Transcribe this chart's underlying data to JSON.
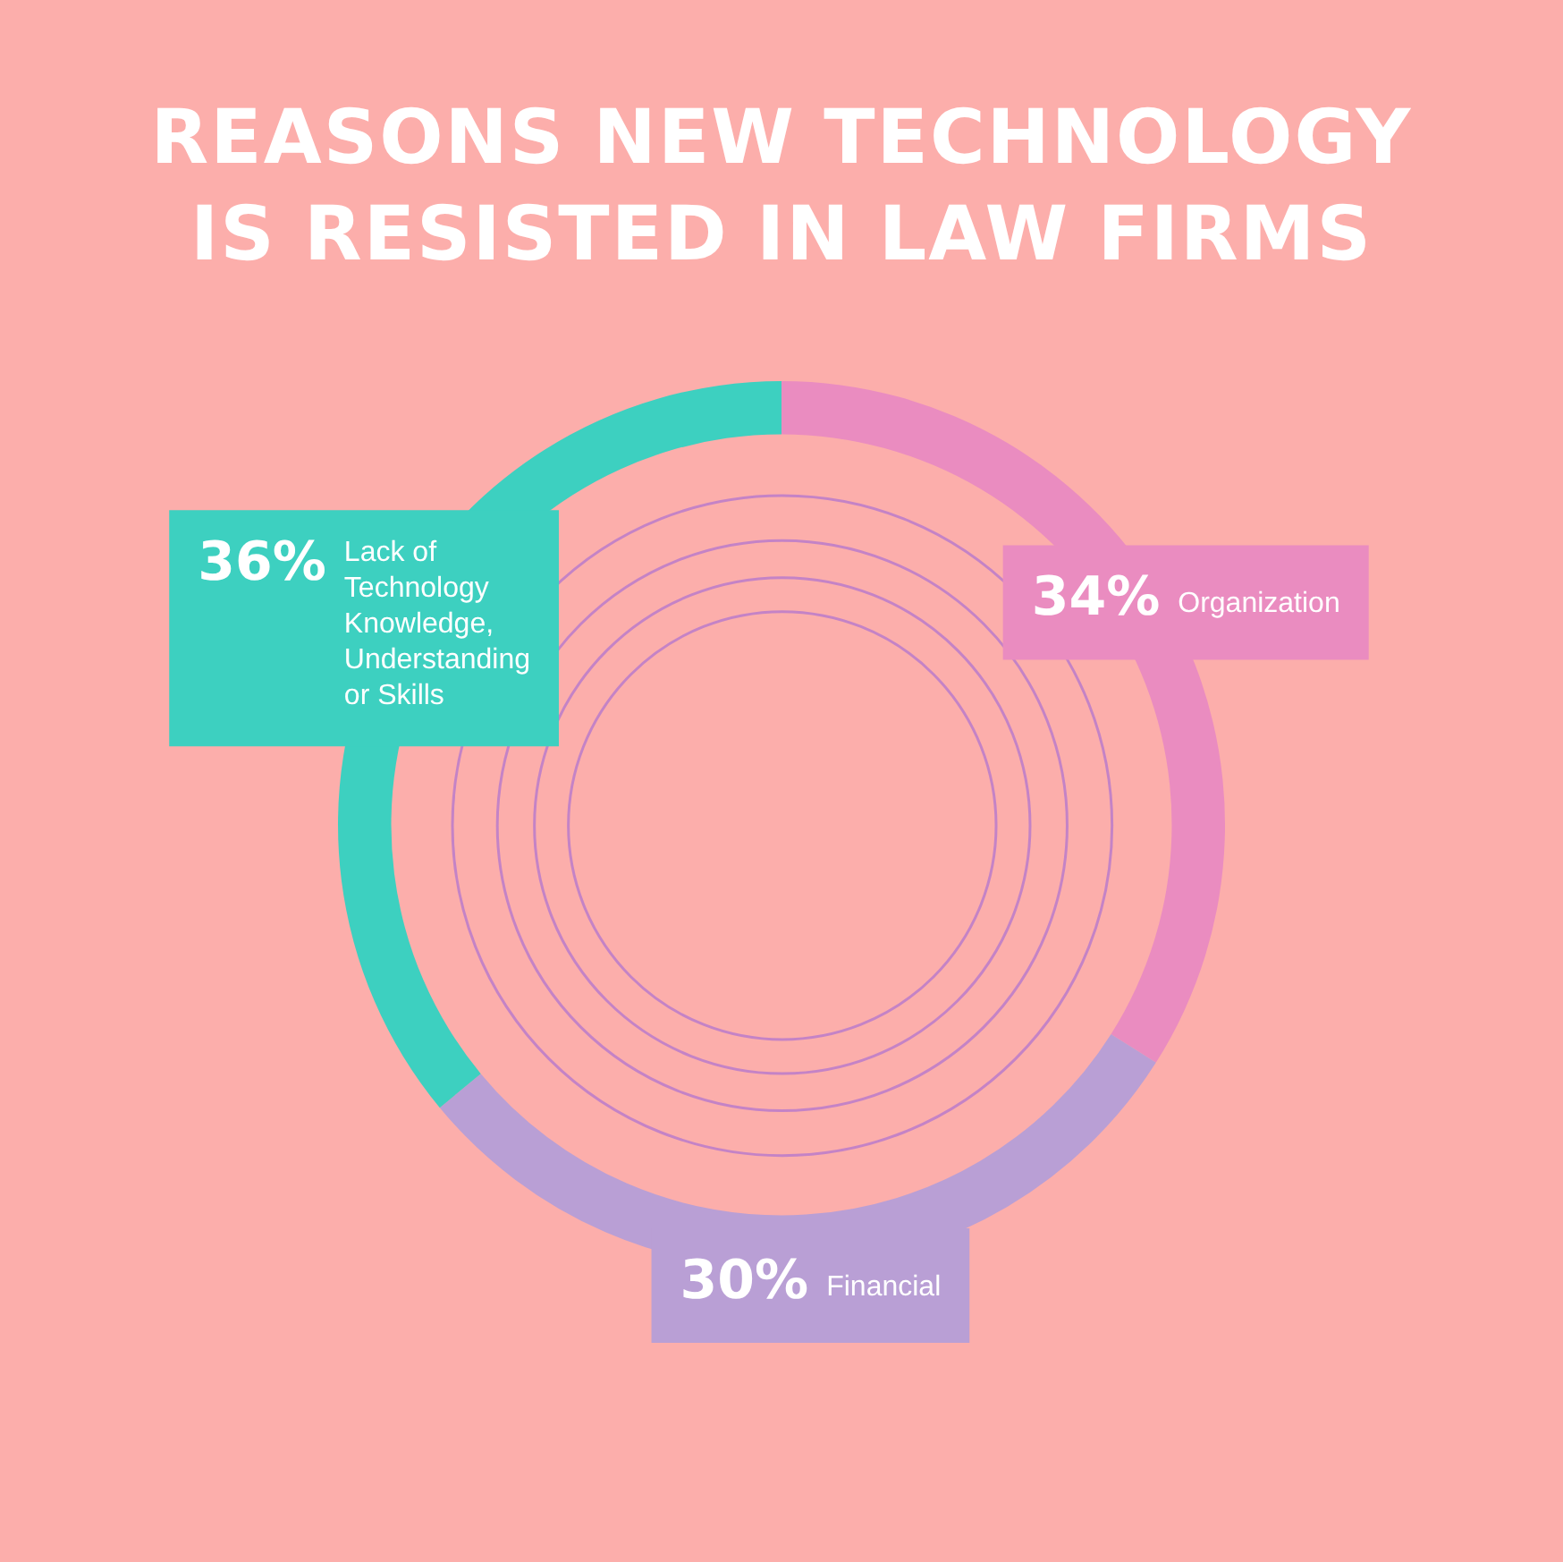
{
  "chart_data": {
    "type": "donut",
    "title": "REASONS NEW TECHNOLOGY IS RESISTED IN LAW FIRMS",
    "categories": [
      "Organization",
      "Financial",
      "Lack of Technology Knowledge, Understanding or Skills"
    ],
    "values": [
      34,
      30,
      36
    ],
    "colors": [
      "#ea8cc0",
      "#b99fd5",
      "#3dd0c0"
    ],
    "value_labels": [
      "34%",
      "30%",
      "36%"
    ]
  }
}
